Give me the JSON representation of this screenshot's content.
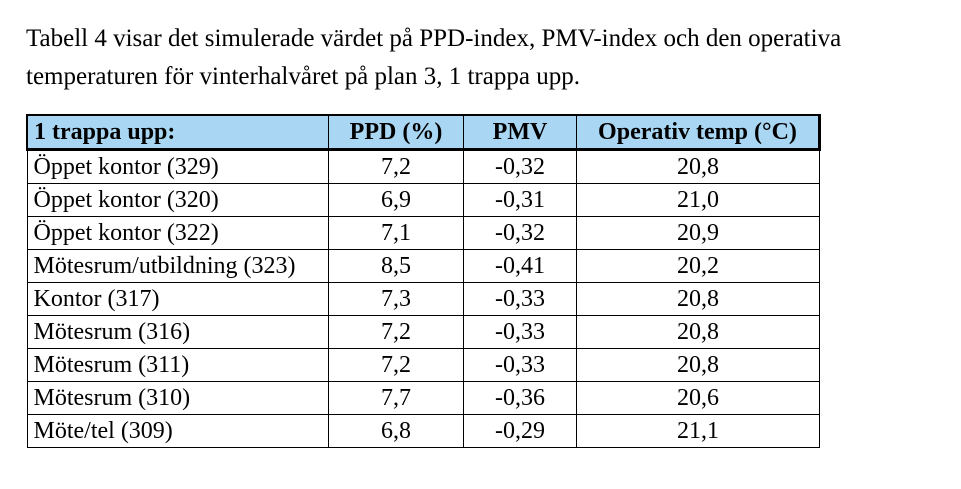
{
  "intro": {
    "line1": "Tabell 4 visar det simulerade värdet på PPD-index, PMV-index och den operativa",
    "line2": "temperaturen för vinterhalvåret på plan 3, 1 trappa upp."
  },
  "table": {
    "headers": [
      "1 trappa upp:",
      "PPD (%)",
      "PMV",
      "Operativ temp (°C)"
    ],
    "rows": [
      [
        "Öppet kontor (329)",
        "7,2",
        "-0,32",
        "20,8"
      ],
      [
        "Öppet kontor (320)",
        "6,9",
        "-0,31",
        "21,0"
      ],
      [
        "Öppet kontor (322)",
        "7,1",
        "-0,32",
        "20,9"
      ],
      [
        "Mötesrum/utbildning (323)",
        "8,5",
        "-0,41",
        "20,2"
      ],
      [
        "Kontor (317)",
        "7,3",
        "-0,33",
        "20,8"
      ],
      [
        "Mötesrum (316)",
        "7,2",
        "-0,33",
        "20,8"
      ],
      [
        "Mötesrum (311)",
        "7,2",
        "-0,33",
        "20,8"
      ],
      [
        "Mötesrum (310)",
        "7,7",
        "-0,36",
        "20,6"
      ],
      [
        "Möte/tel (309)",
        "6,8",
        "-0,29",
        "21,1"
      ]
    ]
  },
  "colors": {
    "header_bg": "#a8d6f3"
  }
}
